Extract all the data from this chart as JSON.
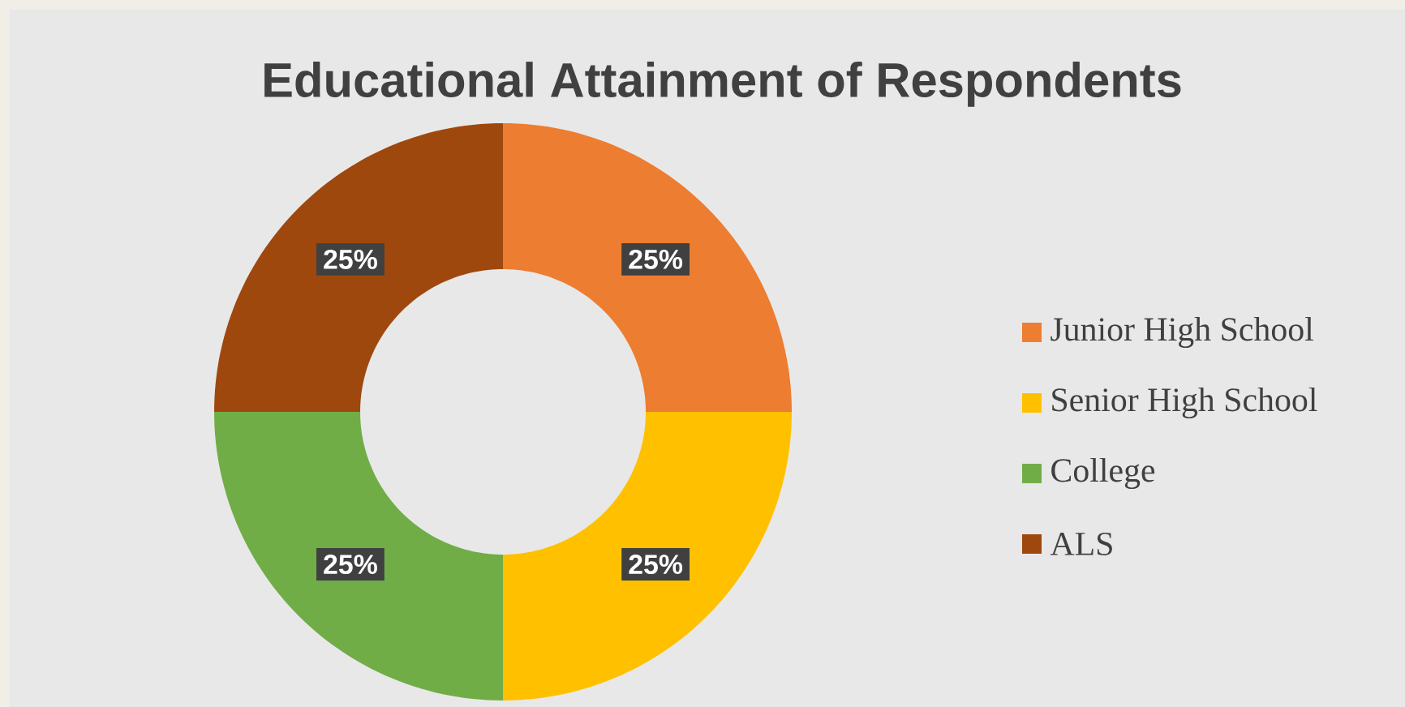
{
  "chart_data": {
    "type": "donut",
    "title": "Educational Attainment of Respondents",
    "categories": [
      "Junior High School",
      "Senior High School",
      "College",
      "ALS"
    ],
    "values": [
      25,
      25,
      25,
      25
    ],
    "colors": [
      "#ed7d31",
      "#ffc000",
      "#70ad47",
      "#9e480e"
    ],
    "value_labels": [
      "25%",
      "25%",
      "25%",
      "25%"
    ],
    "legend": "right"
  }
}
